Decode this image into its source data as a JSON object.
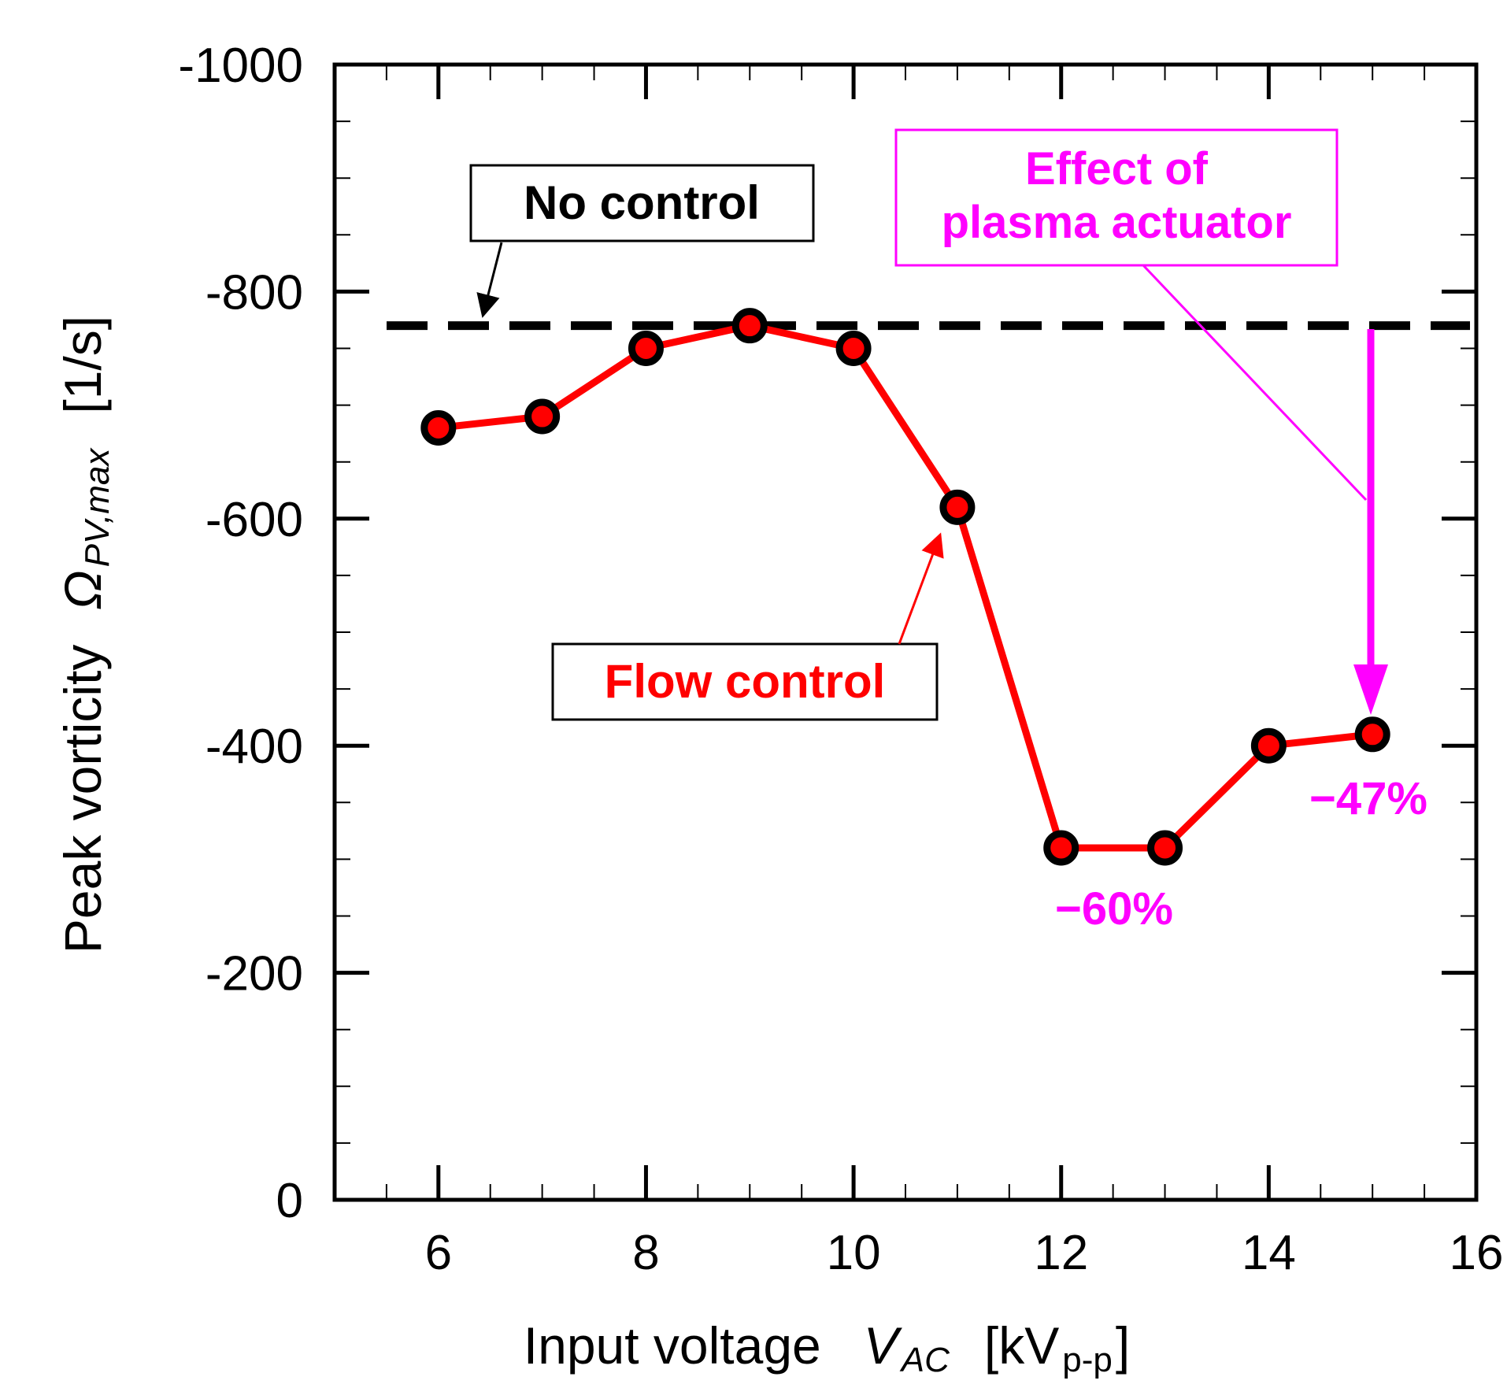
{
  "chart_data": {
    "type": "line",
    "title": "",
    "xlabel": {
      "text": "Input voltage",
      "symbol": "V",
      "symbol_sub": "AC",
      "unit_open": "[kV",
      "unit_sub": "p-p",
      "unit_close": "]"
    },
    "ylabel": {
      "text": "Peak vorticity",
      "symbol": "Ω",
      "symbol_sub": "PV,max",
      "unit": "[1/s]"
    },
    "xlim": [
      5,
      16
    ],
    "ylim": [
      0,
      -1000
    ],
    "x_major_ticks": [
      6,
      8,
      10,
      12,
      14,
      16
    ],
    "x_tick_labels": [
      "6",
      "8",
      "10",
      "12",
      "14",
      "16"
    ],
    "y_major_ticks": [
      0,
      -200,
      -400,
      -600,
      -800,
      -1000
    ],
    "y_tick_labels": [
      "0",
      "-200",
      "-400",
      "-600",
      "-800",
      "-1000"
    ],
    "series": [
      {
        "name": "Flow control",
        "color": "#ff0000",
        "marker_fill": "#ff0000",
        "marker_edge": "#000000",
        "x": [
          6,
          7,
          8,
          9,
          10,
          11,
          12,
          13,
          14,
          15
        ],
        "y": [
          -680,
          -690,
          -750,
          -770,
          -750,
          -610,
          -310,
          -310,
          -400,
          -410
        ]
      }
    ],
    "reference_line": {
      "name": "No control",
      "y": -770,
      "style": "dashed",
      "color": "#000000"
    },
    "annotations": {
      "no_control_label": "No control",
      "flow_control_label": "Flow control",
      "effect_line1": "Effect of",
      "effect_line2": "plasma actuator",
      "pct_60": "−60%",
      "pct_47": "−47%",
      "magenta": "#ff00ff"
    }
  }
}
